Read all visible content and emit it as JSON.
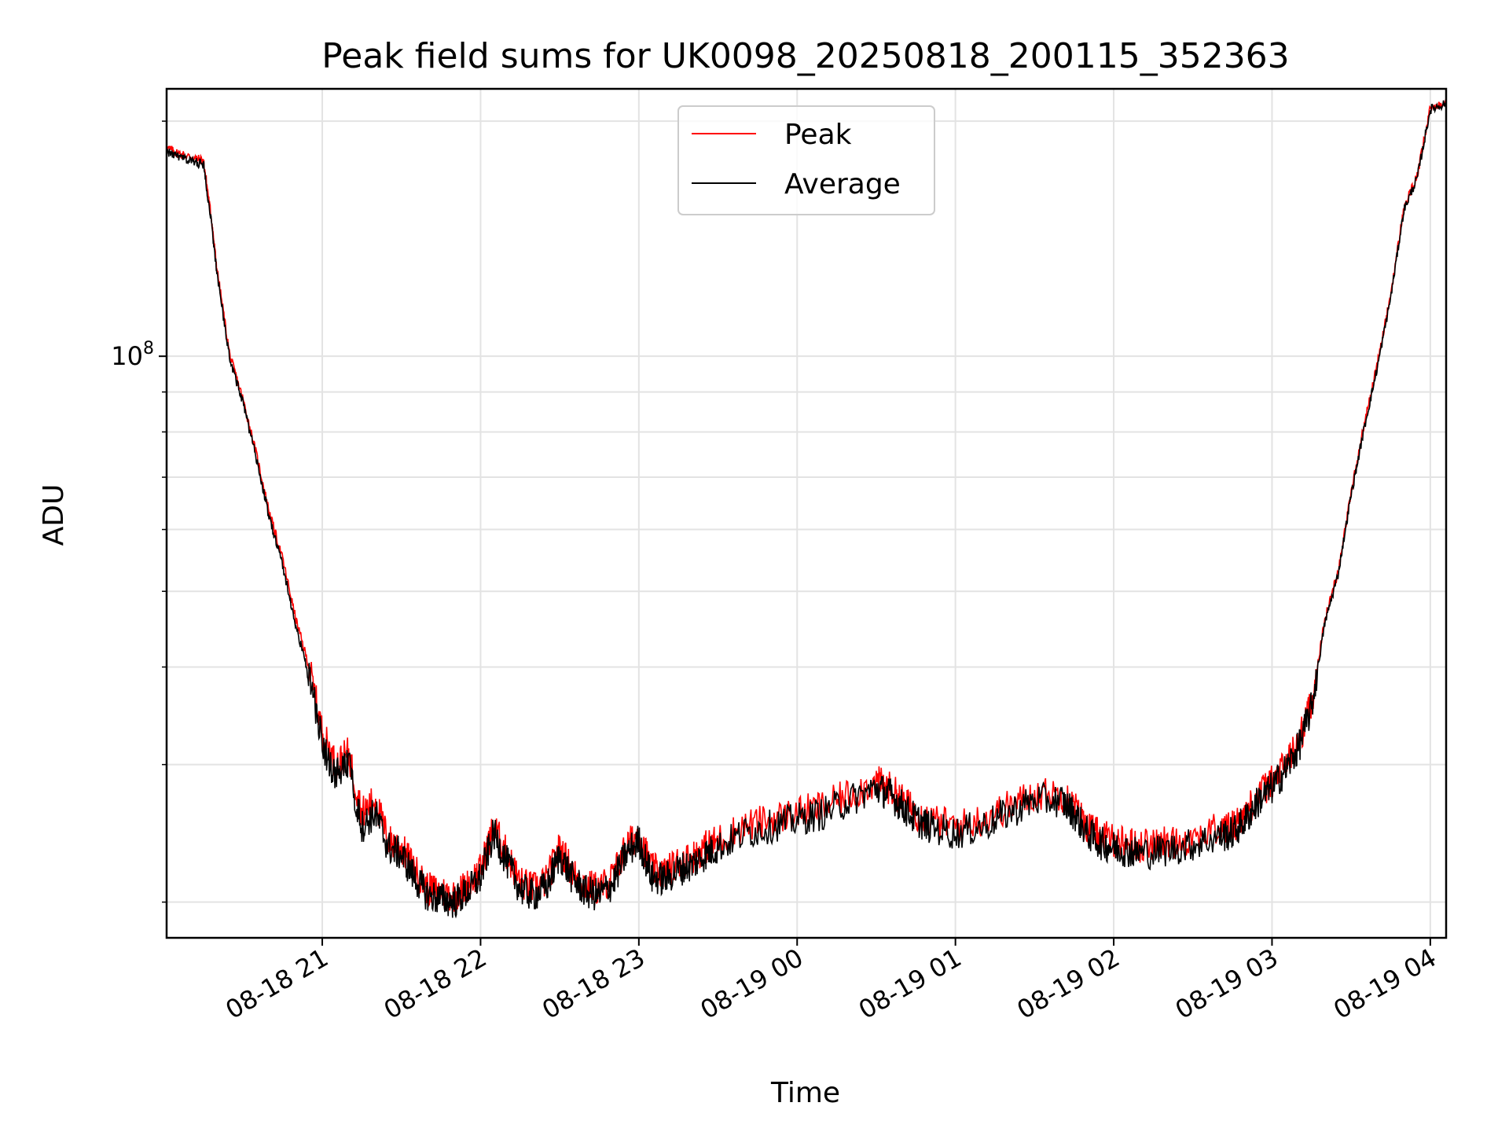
{
  "chart_data": {
    "type": "line",
    "title": "Peak field sums for UK0098_20250818_200115_352363",
    "xlabel": "Time",
    "ylabel": "ADU",
    "y_scale": "log",
    "grid": true,
    "legend_placement": "upper center",
    "x_tick_labels": [
      "08-18 21",
      "08-18 22",
      "08-18 23",
      "08-19 00",
      "08-19 01",
      "08-19 02",
      "08-19 03",
      "08-19 04"
    ],
    "y_tick_labels": [
      {
        "base": "10",
        "exp": "8"
      }
    ],
    "xlim": [
      "2025-08-18 20:01",
      "2025-08-19 04:06"
    ],
    "ylim": [
      18000000,
      220000000
    ],
    "colors": {
      "peak": "#ff0000",
      "average": "#000000"
    },
    "series": [
      {
        "name": "Peak",
        "x": [
          "20:01",
          "20:05",
          "20:10",
          "20:15",
          "20:18",
          "20:20",
          "20:25",
          "20:30",
          "20:35",
          "20:40",
          "20:45",
          "20:50",
          "20:55",
          "21:00",
          "21:05",
          "21:10",
          "21:15",
          "21:20",
          "21:25",
          "21:30",
          "21:35",
          "21:40",
          "21:45",
          "21:50",
          "21:55",
          "22:00",
          "22:05",
          "22:10",
          "22:15",
          "22:20",
          "22:25",
          "22:30",
          "22:35",
          "22:40",
          "22:45",
          "22:50",
          "22:55",
          "23:00",
          "23:05",
          "23:10",
          "23:15",
          "23:20",
          "23:25",
          "23:30",
          "23:40",
          "23:50",
          "00:00",
          "00:10",
          "00:20",
          "00:30",
          "00:35",
          "00:40",
          "00:45",
          "00:50",
          "01:00",
          "01:10",
          "01:20",
          "01:30",
          "01:40",
          "01:45",
          "01:50",
          "01:55",
          "02:00",
          "02:05",
          "02:10",
          "02:20",
          "02:30",
          "02:40",
          "02:45",
          "02:50",
          "02:55",
          "03:00",
          "03:05",
          "03:10",
          "03:15",
          "03:20",
          "03:25",
          "03:30",
          "03:35",
          "03:40",
          "03:45",
          "03:50",
          "03:55",
          "04:00",
          "04:06"
        ],
        "y": [
          185000000,
          182000000,
          180000000,
          178000000,
          150000000,
          130000000,
          100000000,
          88000000,
          75000000,
          63000000,
          55000000,
          46000000,
          40000000,
          33000000,
          30000000,
          31000000,
          26000000,
          27000000,
          24000000,
          23500000,
          22000000,
          20800000,
          20600000,
          20400000,
          21000000,
          22000000,
          25000000,
          23000000,
          21200000,
          20800000,
          21300000,
          23500000,
          21800000,
          21000000,
          20800000,
          21500000,
          23500000,
          24500000,
          22000000,
          21800000,
          22500000,
          22800000,
          23500000,
          24000000,
          25000000,
          25500000,
          26000000,
          26500000,
          27500000,
          28500000,
          28000000,
          27000000,
          26000000,
          25500000,
          25000000,
          25500000,
          26500000,
          27500000,
          27500000,
          26500000,
          25000000,
          24300000,
          24000000,
          23800000,
          23600000,
          23800000,
          24200000,
          24800000,
          25000000,
          26000000,
          27500000,
          28500000,
          30000000,
          32000000,
          36000000,
          46000000,
          53000000,
          67000000,
          82000000,
          98000000,
          120000000,
          155000000,
          170000000,
          208000000,
          212000000
        ]
      },
      {
        "name": "Average",
        "x": [
          "20:01",
          "20:05",
          "20:10",
          "20:15",
          "20:18",
          "20:20",
          "20:25",
          "20:30",
          "20:35",
          "20:40",
          "20:45",
          "20:50",
          "20:55",
          "21:00",
          "21:05",
          "21:10",
          "21:15",
          "21:20",
          "21:25",
          "21:30",
          "21:35",
          "21:40",
          "21:45",
          "21:50",
          "21:55",
          "22:00",
          "22:05",
          "22:10",
          "22:15",
          "22:20",
          "22:25",
          "22:30",
          "22:35",
          "22:40",
          "22:45",
          "22:50",
          "22:55",
          "23:00",
          "23:05",
          "23:10",
          "23:15",
          "23:20",
          "23:25",
          "23:30",
          "23:40",
          "23:50",
          "00:00",
          "00:10",
          "00:20",
          "00:30",
          "00:35",
          "00:40",
          "00:45",
          "00:50",
          "01:00",
          "01:10",
          "01:20",
          "01:30",
          "01:40",
          "01:45",
          "01:50",
          "01:55",
          "02:00",
          "02:05",
          "02:10",
          "02:20",
          "02:30",
          "02:40",
          "02:45",
          "02:50",
          "02:55",
          "03:00",
          "03:05",
          "03:10",
          "03:15",
          "03:20",
          "03:25",
          "03:30",
          "03:35",
          "03:40",
          "03:45",
          "03:50",
          "03:55",
          "04:00",
          "04:06"
        ],
        "y": [
          183000000,
          180000000,
          178000000,
          176000000,
          148000000,
          128000000,
          99000000,
          87000000,
          74000000,
          62000000,
          54000000,
          45000000,
          39000000,
          32000000,
          29000000,
          30000000,
          25000000,
          26000000,
          23500000,
          23000000,
          21500000,
          20400000,
          20200000,
          20000000,
          20600000,
          21500000,
          24500000,
          22500000,
          20800000,
          20400000,
          20900000,
          23000000,
          21400000,
          20600000,
          20400000,
          21100000,
          23000000,
          24000000,
          21500000,
          21400000,
          22000000,
          22300000,
          23000000,
          23500000,
          24500000,
          25000000,
          25500000,
          26000000,
          27000000,
          28000000,
          27500000,
          26500000,
          25500000,
          25000000,
          24500000,
          25000000,
          26000000,
          27000000,
          27000000,
          26000000,
          24500000,
          23800000,
          23500000,
          23300000,
          23100000,
          23300000,
          23700000,
          24300000,
          24500000,
          25500000,
          27000000,
          28000000,
          29500000,
          31500000,
          35500000,
          45500000,
          52500000,
          66500000,
          81000000,
          97000000,
          119000000,
          154000000,
          169000000,
          207000000,
          211000000
        ]
      }
    ]
  }
}
